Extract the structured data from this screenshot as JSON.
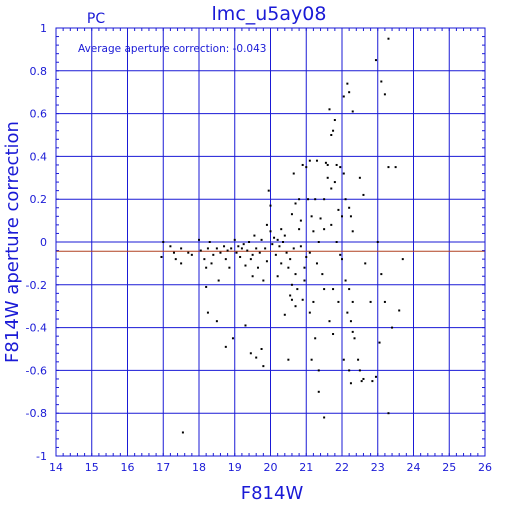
{
  "chart_data": {
    "type": "scatter",
    "title": "lmc_u5ay08",
    "corner_label": "PC",
    "annotation": "Average aperture correction: -0.043",
    "xlabel": "F814W",
    "ylabel": "F814W aperture correction",
    "xlim": [
      14,
      26
    ],
    "ylim": [
      -1,
      1
    ],
    "x_ticks": [
      "14",
      "15",
      "16",
      "17",
      "18",
      "19",
      "20",
      "21",
      "22",
      "23",
      "24",
      "25",
      "26"
    ],
    "y_ticks": [
      "-1",
      "-0.8",
      "-0.6",
      "-0.4",
      "-0.2",
      "0",
      "0.2",
      "0.4",
      "0.6",
      "0.8",
      "1"
    ],
    "grid": true,
    "average_line": -0.043,
    "colors": {
      "axis": "#1a1ad6",
      "average_line": "#b04020",
      "points": "#000000",
      "background": "#ffffff"
    },
    "points": [
      [
        17.0,
        0.0
      ],
      [
        16.95,
        -0.07
      ],
      [
        17.2,
        -0.02
      ],
      [
        17.3,
        -0.05
      ],
      [
        17.35,
        -0.08
      ],
      [
        17.5,
        -0.03
      ],
      [
        17.5,
        -0.1
      ],
      [
        17.7,
        -0.05
      ],
      [
        17.8,
        -0.06
      ],
      [
        17.55,
        -0.89
      ],
      [
        18.0,
        0.01
      ],
      [
        18.05,
        -0.04
      ],
      [
        18.15,
        -0.08
      ],
      [
        18.2,
        -0.12
      ],
      [
        18.25,
        -0.03
      ],
      [
        18.3,
        0.0
      ],
      [
        18.35,
        -0.1
      ],
      [
        18.2,
        -0.21
      ],
      [
        18.25,
        -0.33
      ],
      [
        18.4,
        -0.06
      ],
      [
        18.5,
        -0.03
      ],
      [
        18.55,
        -0.18
      ],
      [
        18.6,
        -0.05
      ],
      [
        18.7,
        -0.02
      ],
      [
        18.75,
        -0.08
      ],
      [
        18.8,
        -0.04
      ],
      [
        18.85,
        -0.12
      ],
      [
        18.9,
        -0.03
      ],
      [
        18.95,
        -0.45
      ],
      [
        18.75,
        -0.49
      ],
      [
        19.0,
        0.01
      ],
      [
        19.05,
        -0.05
      ],
      [
        19.1,
        -0.02
      ],
      [
        19.15,
        -0.07
      ],
      [
        19.2,
        -0.03
      ],
      [
        19.25,
        -0.01
      ],
      [
        19.3,
        -0.11
      ],
      [
        19.35,
        -0.04
      ],
      [
        19.4,
        0.0
      ],
      [
        19.45,
        -0.08
      ],
      [
        19.5,
        -0.06
      ],
      [
        19.55,
        0.03
      ],
      [
        19.6,
        -0.03
      ],
      [
        19.65,
        -0.12
      ],
      [
        19.7,
        -0.05
      ],
      [
        19.75,
        0.01
      ],
      [
        19.8,
        -0.18
      ],
      [
        19.85,
        -0.03
      ],
      [
        19.9,
        -0.09
      ],
      [
        19.3,
        -0.39
      ],
      [
        19.45,
        -0.52
      ],
      [
        19.6,
        -0.54
      ],
      [
        19.75,
        -0.5
      ],
      [
        19.8,
        -0.58
      ],
      [
        19.95,
        0.24
      ],
      [
        20.0,
        0.17
      ],
      [
        20.0,
        0.05
      ],
      [
        19.9,
        0.08
      ],
      [
        20.05,
        -0.01
      ],
      [
        20.1,
        0.02
      ],
      [
        20.15,
        -0.06
      ],
      [
        20.2,
        0.01
      ],
      [
        20.25,
        -0.02
      ],
      [
        20.3,
        -0.1
      ],
      [
        20.35,
        0.0
      ],
      [
        20.4,
        0.03
      ],
      [
        20.45,
        -0.05
      ],
      [
        20.5,
        -0.12
      ],
      [
        20.55,
        -0.08
      ],
      [
        20.6,
        -0.2
      ],
      [
        20.65,
        -0.03
      ],
      [
        20.7,
        -0.15
      ],
      [
        20.75,
        -0.22
      ],
      [
        20.8,
        0.06
      ],
      [
        20.85,
        -0.02
      ],
      [
        20.9,
        -0.27
      ],
      [
        20.95,
        -0.18
      ],
      [
        20.55,
        -0.25
      ],
      [
        20.6,
        -0.27
      ],
      [
        20.7,
        -0.3
      ],
      [
        20.4,
        -0.34
      ],
      [
        20.5,
        -0.55
      ],
      [
        20.2,
        -0.16
      ],
      [
        20.6,
        0.13
      ],
      [
        20.7,
        0.18
      ],
      [
        20.65,
        0.32
      ],
      [
        20.9,
        0.36
      ],
      [
        20.8,
        0.2
      ],
      [
        20.85,
        0.1
      ],
      [
        21.0,
        0.35
      ],
      [
        21.05,
        0.2
      ],
      [
        21.1,
        -0.05
      ],
      [
        21.15,
        0.12
      ],
      [
        21.2,
        0.05
      ],
      [
        21.25,
        0.2
      ],
      [
        21.3,
        -0.1
      ],
      [
        21.35,
        0.0
      ],
      [
        21.4,
        0.11
      ],
      [
        21.45,
        -0.15
      ],
      [
        21.5,
        0.06
      ],
      [
        21.1,
        0.38
      ],
      [
        21.3,
        0.38
      ],
      [
        21.55,
        0.37
      ],
      [
        21.6,
        0.36
      ],
      [
        21.65,
        0.62
      ],
      [
        21.7,
        0.5
      ],
      [
        21.75,
        0.52
      ],
      [
        21.8,
        0.57
      ],
      [
        21.85,
        0.36
      ],
      [
        21.95,
        0.35
      ],
      [
        21.6,
        0.3
      ],
      [
        21.7,
        0.25
      ],
      [
        21.8,
        0.28
      ],
      [
        21.9,
        0.15
      ],
      [
        22.0,
        0.12
      ],
      [
        21.7,
        0.08
      ],
      [
        21.85,
        0.0
      ],
      [
        21.95,
        -0.06
      ],
      [
        22.0,
        -0.08
      ],
      [
        21.75,
        -0.22
      ],
      [
        21.9,
        -0.28
      ],
      [
        21.65,
        -0.37
      ],
      [
        21.75,
        -0.43
      ],
      [
        21.1,
        -0.33
      ],
      [
        21.25,
        -0.45
      ],
      [
        21.35,
        -0.6
      ],
      [
        21.5,
        -0.82
      ],
      [
        21.15,
        -0.55
      ],
      [
        21.5,
        -0.22
      ],
      [
        22.05,
        0.32
      ],
      [
        22.05,
        0.68
      ],
      [
        22.15,
        0.74
      ],
      [
        22.2,
        0.7
      ],
      [
        22.3,
        0.61
      ],
      [
        22.1,
        0.2
      ],
      [
        22.2,
        0.16
      ],
      [
        22.25,
        0.12
      ],
      [
        22.3,
        0.05
      ],
      [
        22.1,
        -0.18
      ],
      [
        22.2,
        -0.22
      ],
      [
        22.3,
        -0.28
      ],
      [
        22.15,
        -0.33
      ],
      [
        22.25,
        -0.37
      ],
      [
        22.3,
        -0.42
      ],
      [
        22.05,
        -0.55
      ],
      [
        22.2,
        -0.6
      ],
      [
        22.25,
        -0.66
      ],
      [
        22.45,
        -0.55
      ],
      [
        22.35,
        -0.45
      ],
      [
        22.5,
        -0.6
      ],
      [
        22.55,
        -0.65
      ],
      [
        22.5,
        0.3
      ],
      [
        22.6,
        0.22
      ],
      [
        22.65,
        -0.1
      ],
      [
        22.8,
        -0.28
      ],
      [
        22.85,
        -0.65
      ],
      [
        22.95,
        -0.63
      ],
      [
        22.95,
        0.85
      ],
      [
        23.1,
        0.75
      ],
      [
        23.2,
        0.69
      ],
      [
        23.3,
        0.95
      ],
      [
        23.3,
        0.35
      ],
      [
        23.5,
        0.35
      ],
      [
        23.1,
        -0.15
      ],
      [
        23.05,
        -0.47
      ],
      [
        23.0,
        0.0
      ],
      [
        23.2,
        -0.28
      ],
      [
        23.4,
        -0.4
      ],
      [
        23.6,
        -0.32
      ],
      [
        23.7,
        -0.08
      ],
      [
        23.3,
        -0.8
      ],
      [
        22.6,
        -0.64
      ],
      [
        21.5,
        0.2
      ],
      [
        20.95,
        -0.12
      ],
      [
        21.2,
        -0.28
      ],
      [
        21.0,
        -0.07
      ],
      [
        20.3,
        0.06
      ],
      [
        19.5,
        -0.16
      ],
      [
        18.5,
        -0.37
      ],
      [
        21.35,
        -0.7
      ]
    ]
  }
}
